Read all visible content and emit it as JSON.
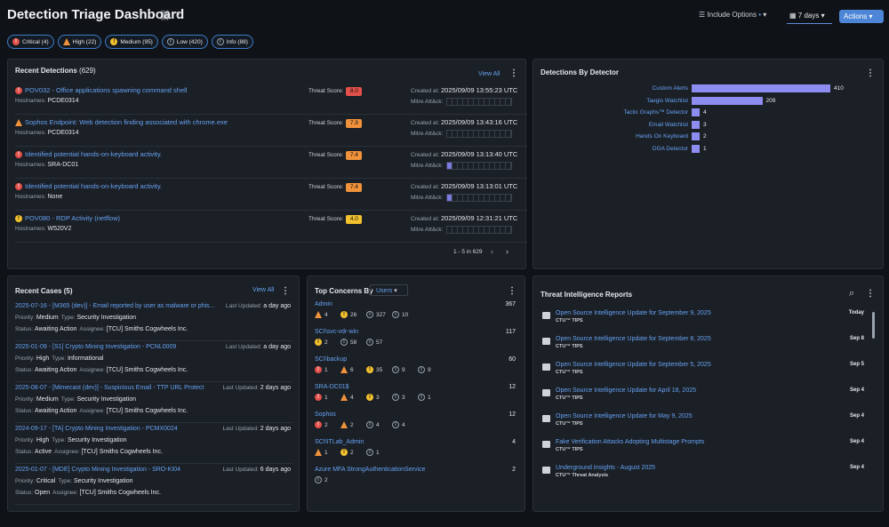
{
  "header": {
    "title": "Detection Triage Dashboard",
    "include_options": "Include Options",
    "days": "7 days",
    "actions": "Actions"
  },
  "filters": [
    {
      "label": "Critical (4)",
      "kind": "critical"
    },
    {
      "label": "High (22)",
      "kind": "high"
    },
    {
      "label": "Medium (95)",
      "kind": "medium"
    },
    {
      "label": "Low (420)",
      "kind": "low"
    },
    {
      "label": "Info (88)",
      "kind": "info"
    }
  ],
  "recent_detections": {
    "title": "Recent Detections",
    "count": "(629)",
    "view_all": "View All",
    "pagination": "1 - 5 in 629",
    "hostnames_label": "Hostnames:",
    "threat_label": "Threat Score:",
    "created_label": "Created at:",
    "mitre_label": "Mitre Att&ck:",
    "rows": [
      {
        "title": "POV032 - Office applications spawning command shell",
        "severity": "critical",
        "host": "PCDE0314",
        "score": "8.0",
        "score_color": "#e2504a",
        "created": "2025/09/09 13:55:23 UTC",
        "mitre_filled": 0
      },
      {
        "title": "Sophos Endpoint: Web detection finding associated with chrome.exe",
        "severity": "high",
        "host": "PCDE0314",
        "score": "7.9",
        "score_color": "#f0923b",
        "created": "2025/09/09 13:43:16 UTC",
        "mitre_filled": 0
      },
      {
        "title": "Identified potential hands-on-keyboard activity.",
        "severity": "critical",
        "host": "SRA-DC01",
        "score": "7.4",
        "score_color": "#f0923b",
        "created": "2025/09/09 13:13:40 UTC",
        "mitre_filled": 1
      },
      {
        "title": "Identified potential hands-on-keyboard activity.",
        "severity": "critical",
        "host": "None",
        "score": "7.4",
        "score_color": "#f0923b",
        "created": "2025/09/09 13:13:01 UTC",
        "mitre_filled": 1
      },
      {
        "title": "POV080 - RDP Activity (netflow)",
        "severity": "medium",
        "host": "W520V2",
        "score": "4.0",
        "score_color": "#f2c12e",
        "created": "2025/09/09 12:31:21 UTC",
        "mitre_filled": 0
      }
    ]
  },
  "detections_by_detector": {
    "title": "Detections By Detector",
    "rows": [
      {
        "label": "Custom Alerts",
        "value": 410
      },
      {
        "label": "Taegis Watchlist",
        "value": 209
      },
      {
        "label": "Tactic Graphs™ Detector",
        "value": 4
      },
      {
        "label": "Email Watchlist",
        "value": 3
      },
      {
        "label": "Hands On Keyboard",
        "value": 2
      },
      {
        "label": "DGA Detector",
        "value": 1
      }
    ]
  },
  "recent_cases": {
    "title": "Recent Cases",
    "count": "(5)",
    "view_all": "View All",
    "last_updated_label": "Last Updated:",
    "priority_label": "Priority:",
    "type_label": "Type:",
    "status_label": "Status:",
    "assignee_label": "Assignee:",
    "rows": [
      {
        "title": "2025-07-16 - [M365 (dev)] - Email reported by user as malware or phis...",
        "updated": "a day ago",
        "priority": "Medium",
        "type": "Security Investigation",
        "status": "Awaiting Action",
        "assignee": "[TCU] Smiths Cogwheels Inc."
      },
      {
        "title": "2025-01-09 - [S1] Crypto Mining Investigation - PCNL0009",
        "updated": "a day ago",
        "priority": "High",
        "type": "Informational",
        "status": "Awaiting Action",
        "assignee": "[TCU] Smiths Cogwheels Inc."
      },
      {
        "title": "2025-08-07 - [Mimecast (dev)] - Suspicious Email - TTP URL Protect",
        "updated": "2 days ago",
        "priority": "Medium",
        "type": "Security Investigation",
        "status": "Awaiting Action",
        "assignee": "[TCU] Smiths Cogwheels Inc."
      },
      {
        "title": "2024-09-17 - [TA] Crypto Mining Investigation - PCMX0024",
        "updated": "2 days ago",
        "priority": "High",
        "type": "Security Investigation",
        "status": "Active",
        "assignee": "[TCU] Smiths Cogwheels Inc."
      },
      {
        "title": "2025-01-07 - [MDE] Crypto Mining Investigation - SRO-KI04",
        "updated": "6 days ago",
        "priority": "Critical",
        "type": "Security Investigation",
        "status": "Open",
        "assignee": "[TCU] Smiths Cogwheels Inc."
      }
    ]
  },
  "top_concerns": {
    "title": "Top Concerns By",
    "dropdown": "Users",
    "rows": [
      {
        "name": "Admin",
        "count": "367",
        "sev": [
          [
            "high",
            "4"
          ],
          [
            "medium",
            "26"
          ],
          [
            "low",
            "327"
          ],
          [
            "info",
            "10"
          ]
        ]
      },
      {
        "name": "SCI\\svc-vdr-win",
        "count": "117",
        "sev": [
          [
            "medium",
            "2"
          ],
          [
            "low",
            "58"
          ],
          [
            "info",
            "57"
          ]
        ]
      },
      {
        "name": "SCI\\backup",
        "count": "60",
        "sev": [
          [
            "critical",
            "1"
          ],
          [
            "high",
            "6"
          ],
          [
            "medium",
            "35"
          ],
          [
            "low",
            "9"
          ],
          [
            "info",
            "9"
          ]
        ]
      },
      {
        "name": "SRA-DC01$",
        "count": "12",
        "sev": [
          [
            "critical",
            "1"
          ],
          [
            "high",
            "4"
          ],
          [
            "medium",
            "3"
          ],
          [
            "low",
            "3"
          ],
          [
            "info",
            "1"
          ]
        ]
      },
      {
        "name": "Sophos",
        "count": "12",
        "sev": [
          [
            "critical",
            "2"
          ],
          [
            "high",
            "2"
          ],
          [
            "low",
            "4"
          ],
          [
            "info",
            "4"
          ]
        ]
      },
      {
        "name": "SCI\\ITLab_Admin",
        "count": "4",
        "sev": [
          [
            "high",
            "1"
          ],
          [
            "medium",
            "2"
          ],
          [
            "low",
            "1"
          ]
        ]
      },
      {
        "name": "Azure MFA StrongAuthenticationService",
        "count": "2",
        "sev": [
          [
            "low",
            "2"
          ]
        ]
      }
    ]
  },
  "threat_intel": {
    "title": "Threat Intelligence Reports",
    "rows": [
      {
        "title": "Open Source Intelligence Update for September 9, 2025",
        "source": "CTU™ TIPS",
        "date": "Today"
      },
      {
        "title": "Open Source Intelligence Update for September 8, 2025",
        "source": "CTU™ TIPS",
        "date": "Sep 8"
      },
      {
        "title": "Open Source Intelligence Update for September 5, 2025",
        "source": "CTU™ TIPS",
        "date": "Sep 5"
      },
      {
        "title": "Open Source Intelligence Update for April 18, 2025",
        "source": "CTU™ TIPS",
        "date": "Sep 4"
      },
      {
        "title": "Open Source Intelligence Update for May 9, 2025",
        "source": "CTU™ TIPS",
        "date": "Sep 4"
      },
      {
        "title": "Fake Verification Attacks Adopting Multistage Prompts",
        "source": "CTU™ TIPS",
        "date": "Sep 4"
      },
      {
        "title": "Underground Insights - August 2025",
        "source": "CTU™ Threat Analysis",
        "date": "Sep 4"
      }
    ]
  }
}
